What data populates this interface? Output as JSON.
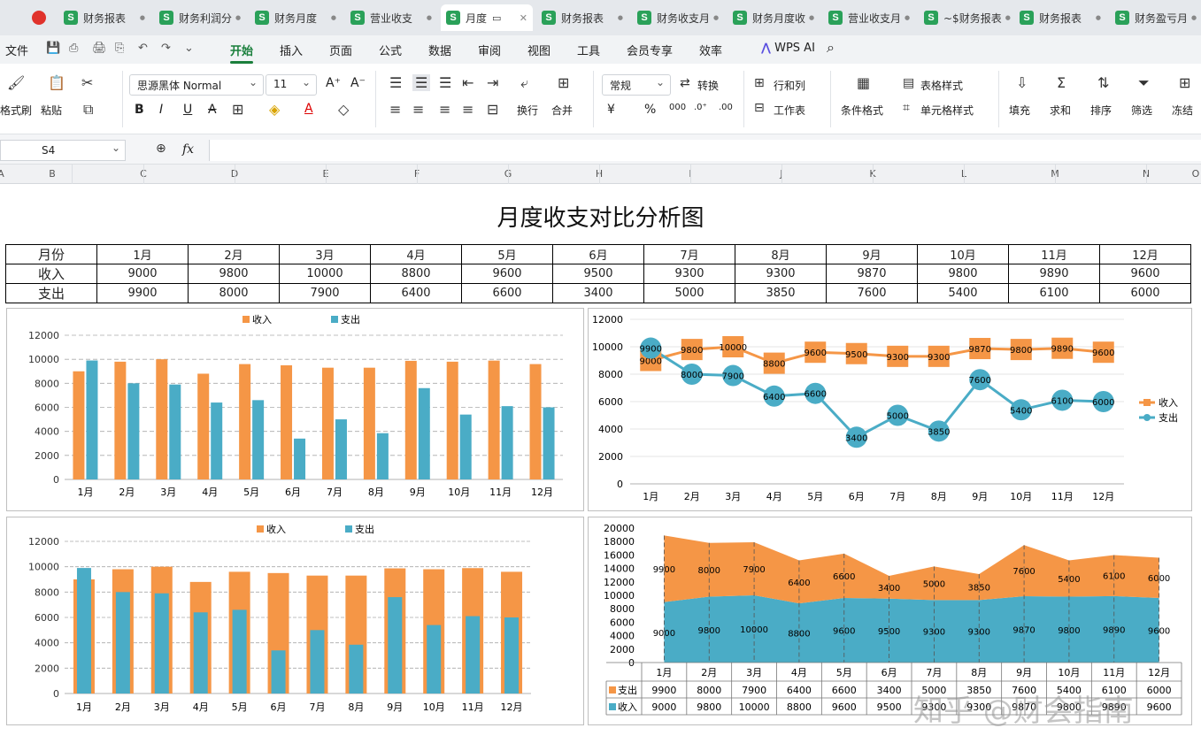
{
  "tabs": [
    {
      "label": "财务报表"
    },
    {
      "label": "财务利润分"
    },
    {
      "label": "财务月度"
    },
    {
      "label": "营业收支"
    },
    {
      "label": "月度",
      "active": true
    },
    {
      "label": "财务报表"
    },
    {
      "label": "财务收支月"
    },
    {
      "label": "财务月度收"
    },
    {
      "label": "营业收支月"
    },
    {
      "label": "~$财务报表"
    },
    {
      "label": "财务报表"
    },
    {
      "label": "财务盈亏月"
    }
  ],
  "menu": [
    "文件",
    "开始",
    "插入",
    "页面",
    "公式",
    "数据",
    "审阅",
    "视图",
    "工具",
    "会员专享",
    "效率"
  ],
  "menu_active": "开始",
  "wps_ai": "WPS AI",
  "ribbon": {
    "format_painter": "格式刷",
    "paste": "粘贴",
    "font_name": "思源黑体 Normal",
    "font_size": "11",
    "wrap": "换行",
    "merge": "合并",
    "number_format": "常规",
    "convert": "转换",
    "row_col": "行和列",
    "worksheet": "工作表",
    "cond_format": "条件格式",
    "table_style": "表格样式",
    "cell_style": "单元格样式",
    "fill": "填充",
    "sum": "求和",
    "sort": "排序",
    "filter": "筛选",
    "freeze": "冻结"
  },
  "namebox": "S4",
  "fx": "fx",
  "columns": [
    "A",
    "B",
    "C",
    "D",
    "E",
    "F",
    "G",
    "H",
    "I",
    "J",
    "K",
    "L",
    "M",
    "N",
    "O"
  ],
  "sheet": {
    "title": "月度收支对比分析图",
    "header_label": "月份",
    "income_label": "收入",
    "expense_label": "支出"
  },
  "chart_data": {
    "type": "bar",
    "categories": [
      "1月",
      "2月",
      "3月",
      "4月",
      "5月",
      "6月",
      "7月",
      "8月",
      "9月",
      "10月",
      "11月",
      "12月"
    ],
    "series": [
      {
        "name": "收入",
        "values": [
          9000,
          9800,
          10000,
          8800,
          9600,
          9500,
          9300,
          9300,
          9870,
          9800,
          9890,
          9600
        ]
      },
      {
        "name": "支出",
        "values": [
          9900,
          8000,
          7900,
          6400,
          6600,
          3400,
          5000,
          3850,
          7600,
          5400,
          6100,
          6000
        ]
      }
    ],
    "ylim": [
      0,
      12000
    ],
    "stack_ylim": [
      0,
      20000
    ]
  },
  "colors": {
    "income": "#f59646",
    "expense": "#4aacc6"
  },
  "watermark": "知乎 @财会指南"
}
